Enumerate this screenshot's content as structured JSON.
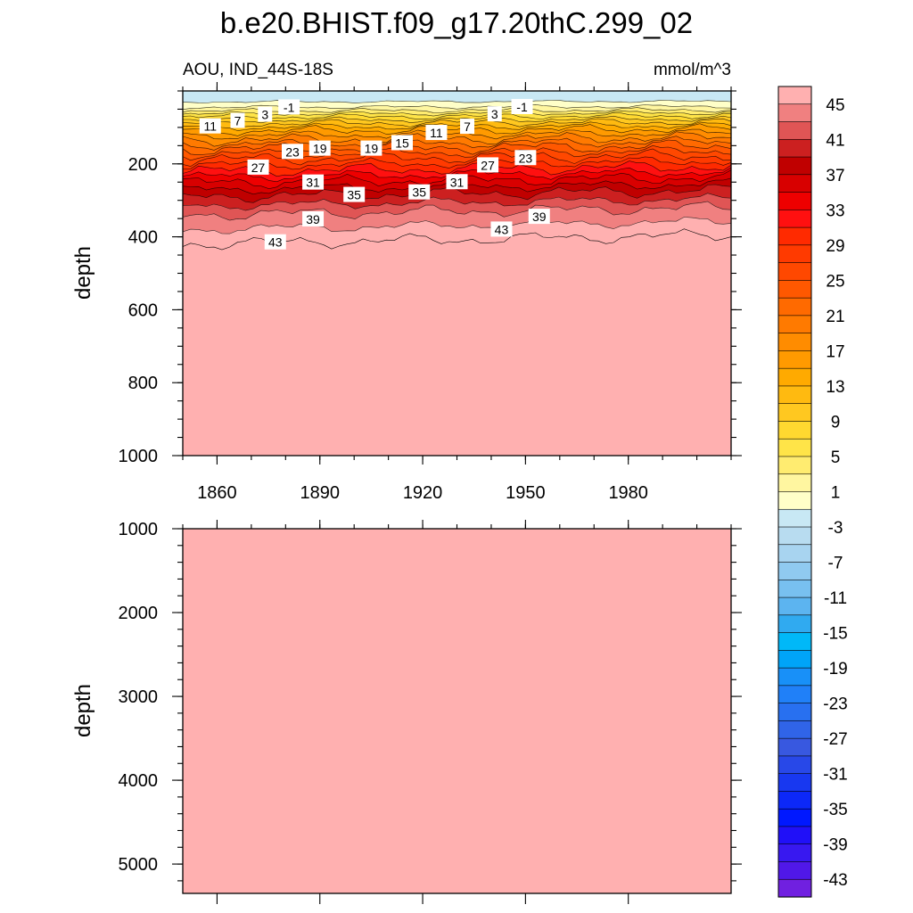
{
  "title": "b.e20.BHIST.f09_g17.20thC.299_02",
  "left_subtitle": "AOU, IND_44S-18S",
  "right_subtitle": "mmol/m^3",
  "chart_data": [
    {
      "type": "heatmap",
      "panel": "upper",
      "xlabel": "",
      "ylabel": "depth",
      "x_range": [
        1850,
        2010
      ],
      "ylim": [
        1000,
        0
      ],
      "x_ticks": [
        1860,
        1890,
        1920,
        1950,
        1980
      ],
      "y_ticks": [
        200,
        400,
        600,
        800,
        1000
      ],
      "contour_interval": 2,
      "contour_labels": [
        {
          "value": "-1",
          "x": 1881,
          "y": 45
        },
        {
          "value": "3",
          "x": 1874,
          "y": 65
        },
        {
          "value": "7",
          "x": 1866,
          "y": 82
        },
        {
          "value": "11",
          "x": 1858,
          "y": 97
        },
        {
          "value": "23",
          "x": 1882,
          "y": 167
        },
        {
          "value": "19",
          "x": 1890,
          "y": 158
        },
        {
          "value": "19",
          "x": 1905,
          "y": 158
        },
        {
          "value": "15",
          "x": 1914,
          "y": 143
        },
        {
          "value": "11",
          "x": 1924,
          "y": 115
        },
        {
          "value": "7",
          "x": 1933,
          "y": 98
        },
        {
          "value": "3",
          "x": 1941,
          "y": 64
        },
        {
          "value": "-1",
          "x": 1949,
          "y": 44
        },
        {
          "value": "27",
          "x": 1872,
          "y": 210
        },
        {
          "value": "27",
          "x": 1939,
          "y": 204
        },
        {
          "value": "23",
          "x": 1950,
          "y": 184
        },
        {
          "value": "31",
          "x": 1888,
          "y": 251
        },
        {
          "value": "31",
          "x": 1930,
          "y": 250
        },
        {
          "value": "35",
          "x": 1900,
          "y": 285
        },
        {
          "value": "35",
          "x": 1919,
          "y": 278
        },
        {
          "value": "39",
          "x": 1888,
          "y": 352
        },
        {
          "value": "39",
          "x": 1954,
          "y": 345
        },
        {
          "value": "43",
          "x": 1877,
          "y": 415
        },
        {
          "value": "43",
          "x": 1943,
          "y": 380
        }
      ],
      "depth_of_isoline": [
        {
          "value": -3,
          "depth": 30
        },
        {
          "value": -1,
          "depth": 45
        },
        {
          "value": 1,
          "depth": 55
        },
        {
          "value": 5,
          "depth": 72
        },
        {
          "value": 9,
          "depth": 90
        },
        {
          "value": 13,
          "depth": 110
        },
        {
          "value": 17,
          "depth": 135
        },
        {
          "value": 21,
          "depth": 160
        },
        {
          "value": 25,
          "depth": 188
        },
        {
          "value": 29,
          "depth": 220
        },
        {
          "value": 33,
          "depth": 252
        },
        {
          "value": 37,
          "depth": 290
        },
        {
          "value": 41,
          "depth": 340
        },
        {
          "value": 45,
          "depth": 420
        }
      ]
    },
    {
      "type": "heatmap",
      "panel": "lower",
      "xlabel": "",
      "ylabel": "depth",
      "x_range": [
        1850,
        2010
      ],
      "ylim": [
        5350,
        1000
      ],
      "y_ticks": [
        1000,
        2000,
        3000,
        4000,
        5000
      ],
      "uniform_value": "45"
    }
  ],
  "colorbar": {
    "labels": [
      "45",
      "41",
      "37",
      "33",
      "29",
      "25",
      "21",
      "17",
      "13",
      "9",
      "5",
      "1",
      "-3",
      "-7",
      "-11",
      "-15",
      "-19",
      "-23",
      "-27",
      "-31",
      "-35",
      "-39",
      "-43"
    ],
    "levels": [
      45,
      43,
      41,
      39,
      37,
      35,
      33,
      31,
      29,
      27,
      25,
      23,
      21,
      19,
      17,
      15,
      13,
      11,
      9,
      7,
      5,
      3,
      1,
      -1,
      -3,
      -5,
      -7,
      -9,
      -11,
      -13,
      -15,
      -17,
      -19,
      -21,
      -23,
      -25,
      -27,
      -29,
      -31,
      -33,
      -35,
      -37,
      -39,
      -41,
      -43,
      -45
    ],
    "colors": [
      "#ffb0b0",
      "#f08080",
      "#e05555",
      "#cc2020",
      "#c00000",
      "#d80000",
      "#ee0000",
      "#ff1010",
      "#ff2a00",
      "#ff3a00",
      "#ff4800",
      "#ff5800",
      "#ff6a00",
      "#ff7a00",
      "#ff8c00",
      "#ff9a00",
      "#ffaa00",
      "#ffba10",
      "#ffc820",
      "#ffd830",
      "#ffe448",
      "#ffec70",
      "#fff6a0",
      "#ffffc8",
      "#c8e8f4",
      "#b8dcf0",
      "#a8d4f0",
      "#90caf0",
      "#78c0f0",
      "#5cb4f0",
      "#30aaf0",
      "#00b8f8",
      "#00a4f8",
      "#1890f8",
      "#2080f8",
      "#2870f0",
      "#3064e8",
      "#3858e0",
      "#2848e8",
      "#1838f0",
      "#0c28f8",
      "#0018ff",
      "#2010f8",
      "#3818f0",
      "#5018e8",
      "#7020e0"
    ]
  }
}
